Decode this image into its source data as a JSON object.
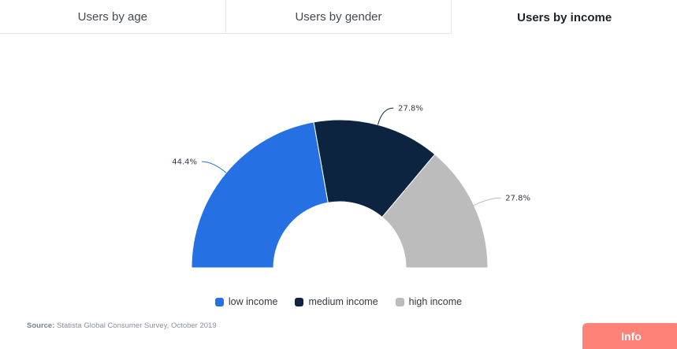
{
  "tabs": [
    {
      "label": "Users by age",
      "active": false
    },
    {
      "label": "Users by gender",
      "active": false
    },
    {
      "label": "Users by income",
      "active": true
    }
  ],
  "chart_data": {
    "type": "pie",
    "variant": "semi-donut",
    "categories": [
      "low income",
      "medium income",
      "high income"
    ],
    "values": [
      44.4,
      27.8,
      27.8
    ],
    "data_labels": [
      "44.4%",
      "27.8%",
      "27.8%"
    ],
    "colors": [
      "#2570e3",
      "#0c2440",
      "#bcbcbc"
    ],
    "legend_position": "bottom"
  },
  "source": {
    "label": "Source:",
    "text": "Statista Global Consumer Survey, October 2019"
  },
  "info_button": {
    "label": "Info"
  }
}
